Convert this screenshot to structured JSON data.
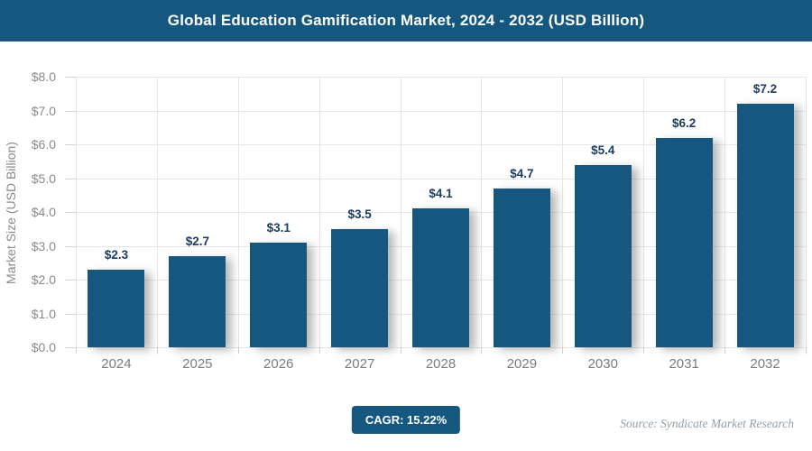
{
  "header": {
    "title": "Global Education Gamification Market, 2024 - 2032 (USD Billion)"
  },
  "chart_data": {
    "type": "bar",
    "title": "Global Education Gamification Market, 2024 - 2032 (USD Billion)",
    "categories": [
      "2024",
      "2025",
      "2026",
      "2027",
      "2028",
      "2029",
      "2030",
      "2031",
      "2032"
    ],
    "values": [
      2.3,
      2.7,
      3.1,
      3.5,
      4.1,
      4.7,
      5.4,
      6.2,
      7.2
    ],
    "value_labels": [
      "$2.3",
      "$2.7",
      "$3.1",
      "$3.5",
      "$4.1",
      "$4.7",
      "$5.4",
      "$6.2",
      "$7.2"
    ],
    "xlabel": "",
    "ylabel": "Market Size (USD Billion)",
    "ylim": [
      0,
      8
    ],
    "ytick_labels": [
      "$0.0",
      "$1.0",
      "$2.0",
      "$3.0",
      "$4.0",
      "$5.0",
      "$6.0",
      "$7.0",
      "$8.0"
    ],
    "grid": true,
    "legend": false
  },
  "footer": {
    "cagr_badge": "CAGR: 15.22%",
    "source": "Source: Syndicate Market Research"
  },
  "colors": {
    "primary_blue": "#15577F",
    "value_label_navy": "#1D3D62",
    "axis_gray": "#8A8A8A",
    "grid_gray": "#E6E6E6"
  }
}
